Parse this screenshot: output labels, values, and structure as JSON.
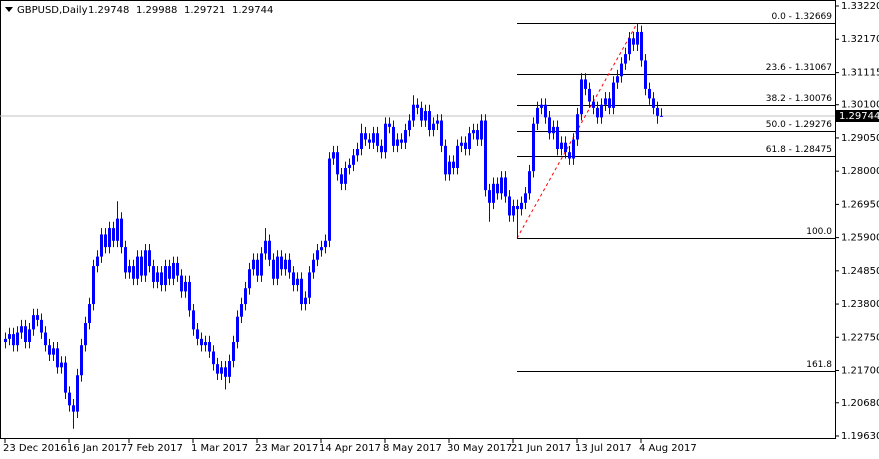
{
  "chart_data": {
    "type": "candlestick",
    "symbol": "GBPUSD,Daily",
    "color": "#0000ff",
    "ylim": [
      1.19535,
      1.3341
    ],
    "yticks": [
      {
        "value": 1.3322,
        "label": "1.33220"
      },
      {
        "value": 1.3217,
        "label": "1.32170"
      },
      1.31115,
      {
        "value": 1.301,
        "label": "1.30100"
      },
      {
        "value": 1.2905,
        "label": "1.29050"
      },
      {
        "value": 1.28,
        "label": "1.28000"
      },
      {
        "value": 1.2695,
        "label": "1.26950"
      },
      {
        "value": 1.259,
        "label": "1.25900"
      },
      {
        "value": 1.2485,
        "label": "1.24850"
      },
      {
        "value": 1.238,
        "label": "1.23800"
      },
      {
        "value": 1.2275,
        "label": "1.22750"
      },
      {
        "value": 1.217,
        "label": "1.21700"
      },
      {
        "value": 1.2068,
        "label": "1.20680"
      },
      {
        "value": 1.1963,
        "label": "1.19630"
      }
    ],
    "fib_levels": [
      {
        "label": "0.0 - 1.32669",
        "value": 1.32669
      },
      {
        "label": "23.6 - 1.31067",
        "value": 1.31067
      },
      {
        "label": "38.2 - 1.30076",
        "value": 1.30076
      },
      {
        "label": "50.0 - 1.29276",
        "value": 1.29276
      },
      {
        "label": "61.8 - 1.28475",
        "value": 1.28475
      },
      {
        "label": "100.0",
        "value": 1.25883
      },
      {
        "label": "161.8",
        "value": 1.21689
      }
    ],
    "dates": [
      "23 Dec 2016",
      null,
      null,
      null,
      null,
      null,
      null,
      null,
      null,
      null,
      null,
      null,
      null,
      null,
      null,
      null,
      "16 Jan 2017",
      null,
      null,
      null,
      null,
      null,
      null,
      null,
      null,
      null,
      null,
      null,
      null,
      null,
      null,
      "7 Feb 2017",
      null,
      null,
      null,
      null,
      null,
      null,
      null,
      null,
      null,
      null,
      null,
      null,
      null,
      null,
      null,
      "1 Mar 2017",
      null,
      null,
      null,
      null,
      null,
      null,
      null,
      null,
      null,
      null,
      null,
      null,
      null,
      null,
      null,
      "23 Mar 2017",
      null,
      null,
      null,
      null,
      null,
      null,
      null,
      null,
      null,
      null,
      null,
      null,
      null,
      null,
      null,
      "14 Apr 2017",
      null,
      null,
      null,
      null,
      null,
      null,
      null,
      null,
      null,
      null,
      null,
      null,
      null,
      null,
      null,
      "8 May 2017",
      null,
      null,
      null,
      null,
      null,
      null,
      null,
      null,
      null,
      null,
      null,
      null,
      null,
      null,
      null,
      "30 May 2017",
      null,
      null,
      null,
      null,
      null,
      null,
      null,
      null,
      null,
      null,
      null,
      null,
      null,
      null,
      null,
      "21 Jun 2017",
      null,
      null,
      null,
      null,
      null,
      null,
      null,
      null,
      null,
      null,
      null,
      null,
      null,
      null,
      null,
      "13 Jul 2017",
      null,
      null,
      null,
      null,
      null,
      null,
      null,
      null,
      null,
      null,
      null,
      null,
      null,
      null,
      null,
      "4 Aug 2017",
      null,
      null,
      null,
      null,
      null
    ],
    "candles": [
      [
        1.226,
        1.229,
        1.224,
        1.227
      ],
      [
        1.227,
        1.2305,
        1.225,
        1.2285
      ],
      [
        1.2285,
        1.2305,
        1.223,
        1.225
      ],
      [
        1.225,
        1.231,
        1.223,
        1.229
      ],
      [
        1.229,
        1.233,
        1.227,
        1.231
      ],
      [
        1.231,
        1.233,
        1.224,
        1.226
      ],
      [
        1.226,
        1.232,
        1.224,
        1.23
      ],
      [
        1.23,
        1.2365,
        1.228,
        1.2345
      ],
      [
        1.2345,
        1.2365,
        1.231,
        1.233
      ],
      [
        1.233,
        1.235,
        1.227,
        1.229
      ],
      [
        1.229,
        1.231,
        1.223,
        1.225
      ],
      [
        1.225,
        1.227,
        1.22,
        1.222
      ],
      [
        1.222,
        1.226,
        1.22,
        1.224
      ],
      [
        1.224,
        1.226,
        1.216,
        1.218
      ],
      [
        1.218,
        1.2215,
        1.216,
        1.2195
      ],
      [
        1.2195,
        1.2215,
        1.208,
        1.21
      ],
      [
        1.21,
        1.212,
        1.204,
        1.206
      ],
      [
        1.206,
        1.208,
        1.1986,
        1.204
      ],
      [
        1.204,
        1.2175,
        1.202,
        1.2155
      ],
      [
        1.2155,
        1.227,
        1.2135,
        1.225
      ],
      [
        1.225,
        1.234,
        1.223,
        1.232
      ],
      [
        1.232,
        1.24,
        1.23,
        1.238
      ],
      [
        1.238,
        1.252,
        1.236,
        1.25
      ],
      [
        1.25,
        1.255,
        1.248,
        1.253
      ],
      [
        1.253,
        1.262,
        1.251,
        1.26
      ],
      [
        1.26,
        1.262,
        1.254,
        1.256
      ],
      [
        1.256,
        1.264,
        1.254,
        1.262
      ],
      [
        1.262,
        1.264,
        1.256,
        1.258
      ],
      [
        1.258,
        1.2705,
        1.256,
        1.265
      ],
      [
        1.265,
        1.267,
        1.254,
        1.256
      ],
      [
        1.256,
        1.258,
        1.246,
        1.248
      ],
      [
        1.248,
        1.252,
        1.246,
        1.25
      ],
      [
        1.25,
        1.252,
        1.244,
        1.246
      ],
      [
        1.246,
        1.255,
        1.244,
        1.253
      ],
      [
        1.253,
        1.255,
        1.245,
        1.247
      ],
      [
        1.247,
        1.257,
        1.245,
        1.255
      ],
      [
        1.255,
        1.257,
        1.248,
        1.25
      ],
      [
        1.25,
        1.252,
        1.243,
        1.245
      ],
      [
        1.245,
        1.25,
        1.243,
        1.248
      ],
      [
        1.248,
        1.25,
        1.242,
        1.244
      ],
      [
        1.244,
        1.252,
        1.242,
        1.25
      ],
      [
        1.25,
        1.252,
        1.244,
        1.246
      ],
      [
        1.246,
        1.253,
        1.244,
        1.251
      ],
      [
        1.251,
        1.253,
        1.245,
        1.247
      ],
      [
        1.247,
        1.249,
        1.24,
        1.242
      ],
      [
        1.242,
        1.247,
        1.24,
        1.245
      ],
      [
        1.245,
        1.247,
        1.234,
        1.236
      ],
      [
        1.236,
        1.238,
        1.228,
        1.23
      ],
      [
        1.23,
        1.232,
        1.225,
        1.227
      ],
      [
        1.227,
        1.229,
        1.223,
        1.225
      ],
      [
        1.225,
        1.228,
        1.223,
        1.226
      ],
      [
        1.226,
        1.228,
        1.221,
        1.223
      ],
      [
        1.223,
        1.225,
        1.217,
        1.219
      ],
      [
        1.219,
        1.221,
        1.214,
        1.216
      ],
      [
        1.216,
        1.22,
        1.214,
        1.218
      ],
      [
        1.218,
        1.22,
        1.211,
        1.215
      ],
      [
        1.215,
        1.222,
        1.213,
        1.22
      ],
      [
        1.22,
        1.228,
        1.218,
        1.226
      ],
      [
        1.226,
        1.236,
        1.224,
        1.234
      ],
      [
        1.234,
        1.24,
        1.232,
        1.238
      ],
      [
        1.238,
        1.245,
        1.236,
        1.243
      ],
      [
        1.243,
        1.251,
        1.241,
        1.249
      ],
      [
        1.249,
        1.254,
        1.247,
        1.252
      ],
      [
        1.252,
        1.254,
        1.245,
        1.247
      ],
      [
        1.247,
        1.256,
        1.245,
        1.254
      ],
      [
        1.254,
        1.262,
        1.252,
        1.258
      ],
      [
        1.258,
        1.26,
        1.25,
        1.252
      ],
      [
        1.252,
        1.254,
        1.244,
        1.246
      ],
      [
        1.246,
        1.255,
        1.244,
        1.253
      ],
      [
        1.253,
        1.255,
        1.247,
        1.249
      ],
      [
        1.249,
        1.254,
        1.247,
        1.252
      ],
      [
        1.252,
        1.254,
        1.246,
        1.248
      ],
      [
        1.248,
        1.25,
        1.242,
        1.244
      ],
      [
        1.244,
        1.248,
        1.242,
        1.246
      ],
      [
        1.246,
        1.248,
        1.236,
        1.238
      ],
      [
        1.238,
        1.242,
        1.236,
        1.24
      ],
      [
        1.24,
        1.25,
        1.238,
        1.248
      ],
      [
        1.248,
        1.254,
        1.246,
        1.252
      ],
      [
        1.252,
        1.257,
        1.25,
        1.255
      ],
      [
        1.255,
        1.258,
        1.253,
        1.256
      ],
      [
        1.256,
        1.26,
        1.254,
        1.258
      ],
      [
        1.258,
        1.286,
        1.256,
        1.284
      ],
      [
        1.284,
        1.288,
        1.282,
        1.286
      ],
      [
        1.286,
        1.288,
        1.277,
        1.279
      ],
      [
        1.279,
        1.281,
        1.274,
        1.276
      ],
      [
        1.276,
        1.283,
        1.274,
        1.281
      ],
      [
        1.281,
        1.284,
        1.279,
        1.282
      ],
      [
        1.282,
        1.287,
        1.28,
        1.285
      ],
      [
        1.285,
        1.289,
        1.283,
        1.287
      ],
      [
        1.287,
        1.295,
        1.285,
        1.292
      ],
      [
        1.292,
        1.294,
        1.288,
        1.29
      ],
      [
        1.29,
        1.292,
        1.287,
        1.289
      ],
      [
        1.289,
        1.294,
        1.287,
        1.292
      ],
      [
        1.292,
        1.294,
        1.286,
        1.288
      ],
      [
        1.288,
        1.29,
        1.284,
        1.286
      ],
      [
        1.286,
        1.297,
        1.284,
        1.295
      ],
      [
        1.295,
        1.297,
        1.292,
        1.294
      ],
      [
        1.294,
        1.296,
        1.286,
        1.288
      ],
      [
        1.288,
        1.292,
        1.286,
        1.29
      ],
      [
        1.29,
        1.292,
        1.287,
        1.289
      ],
      [
        1.289,
        1.295,
        1.287,
        1.293
      ],
      [
        1.293,
        1.298,
        1.291,
        1.296
      ],
      [
        1.296,
        1.304,
        1.294,
        1.301
      ],
      [
        1.301,
        1.303,
        1.298,
        1.3
      ],
      [
        1.3,
        1.302,
        1.294,
        1.296
      ],
      [
        1.296,
        1.301,
        1.294,
        1.299
      ],
      [
        1.299,
        1.301,
        1.291,
        1.293
      ],
      [
        1.293,
        1.297,
        1.291,
        1.295
      ],
      [
        1.295,
        1.298,
        1.293,
        1.296
      ],
      [
        1.296,
        1.298,
        1.286,
        1.288
      ],
      [
        1.288,
        1.29,
        1.277,
        1.279
      ],
      [
        1.279,
        1.285,
        1.277,
        1.283
      ],
      [
        1.283,
        1.285,
        1.279,
        1.281
      ],
      [
        1.281,
        1.29,
        1.279,
        1.288
      ],
      [
        1.288,
        1.291,
        1.286,
        1.289
      ],
      [
        1.289,
        1.291,
        1.285,
        1.287
      ],
      [
        1.287,
        1.294,
        1.285,
        1.292
      ],
      [
        1.292,
        1.295,
        1.29,
        1.293
      ],
      [
        1.293,
        1.295,
        1.288,
        1.29
      ],
      [
        1.29,
        1.298,
        1.288,
        1.296
      ],
      [
        1.296,
        1.298,
        1.272,
        1.274
      ],
      [
        1.274,
        1.276,
        1.264,
        1.27
      ],
      [
        1.27,
        1.278,
        1.268,
        1.276
      ],
      [
        1.276,
        1.278,
        1.271,
        1.273
      ],
      [
        1.273,
        1.28,
        1.271,
        1.278
      ],
      [
        1.278,
        1.28,
        1.27,
        1.272
      ],
      [
        1.272,
        1.274,
        1.264,
        1.266
      ],
      [
        1.266,
        1.271,
        1.264,
        1.269
      ],
      [
        1.269,
        1.271,
        1.2588,
        1.268
      ],
      [
        1.268,
        1.272,
        1.266,
        1.27
      ],
      [
        1.27,
        1.275,
        1.268,
        1.273
      ],
      [
        1.273,
        1.282,
        1.271,
        1.28
      ],
      [
        1.28,
        1.297,
        1.278,
        1.295
      ],
      [
        1.295,
        1.302,
        1.293,
        1.3
      ],
      [
        1.3,
        1.303,
        1.298,
        1.301
      ],
      [
        1.301,
        1.303,
        1.295,
        1.297
      ],
      [
        1.297,
        1.299,
        1.29,
        1.292
      ],
      [
        1.292,
        1.296,
        1.29,
        1.294
      ],
      [
        1.294,
        1.296,
        1.285,
        1.287
      ],
      [
        1.287,
        1.291,
        1.285,
        1.289
      ],
      [
        1.289,
        1.291,
        1.284,
        1.286
      ],
      [
        1.286,
        1.288,
        1.282,
        1.284
      ],
      [
        1.284,
        1.292,
        1.282,
        1.29
      ],
      [
        1.29,
        1.3,
        1.288,
        1.298
      ],
      [
        1.298,
        1.311,
        1.296,
        1.309
      ],
      [
        1.309,
        1.311,
        1.304,
        1.306
      ],
      [
        1.306,
        1.308,
        1.3,
        1.302
      ],
      [
        1.302,
        1.304,
        1.298,
        1.3
      ],
      [
        1.3,
        1.302,
        1.295,
        1.297
      ],
      [
        1.297,
        1.303,
        1.295,
        1.301
      ],
      [
        1.301,
        1.305,
        1.299,
        1.303
      ],
      [
        1.303,
        1.305,
        1.298,
        1.3
      ],
      [
        1.3,
        1.31,
        1.298,
        1.308
      ],
      [
        1.308,
        1.312,
        1.306,
        1.31
      ],
      [
        1.31,
        1.316,
        1.308,
        1.314
      ],
      [
        1.314,
        1.319,
        1.312,
        1.317
      ],
      [
        1.317,
        1.324,
        1.315,
        1.322
      ],
      [
        1.322,
        1.324,
        1.318,
        1.32
      ],
      [
        1.32,
        1.32669,
        1.318,
        1.324
      ],
      [
        1.324,
        1.326,
        1.313,
        1.315
      ],
      [
        1.315,
        1.317,
        1.304,
        1.306
      ],
      [
        1.306,
        1.308,
        1.301,
        1.303
      ],
      [
        1.303,
        1.305,
        1.298,
        1.3
      ],
      [
        1.3,
        1.302,
        1.295,
        1.2975
      ],
      [
        1.29748,
        1.29988,
        1.29721,
        1.29744
      ]
    ]
  }
}
